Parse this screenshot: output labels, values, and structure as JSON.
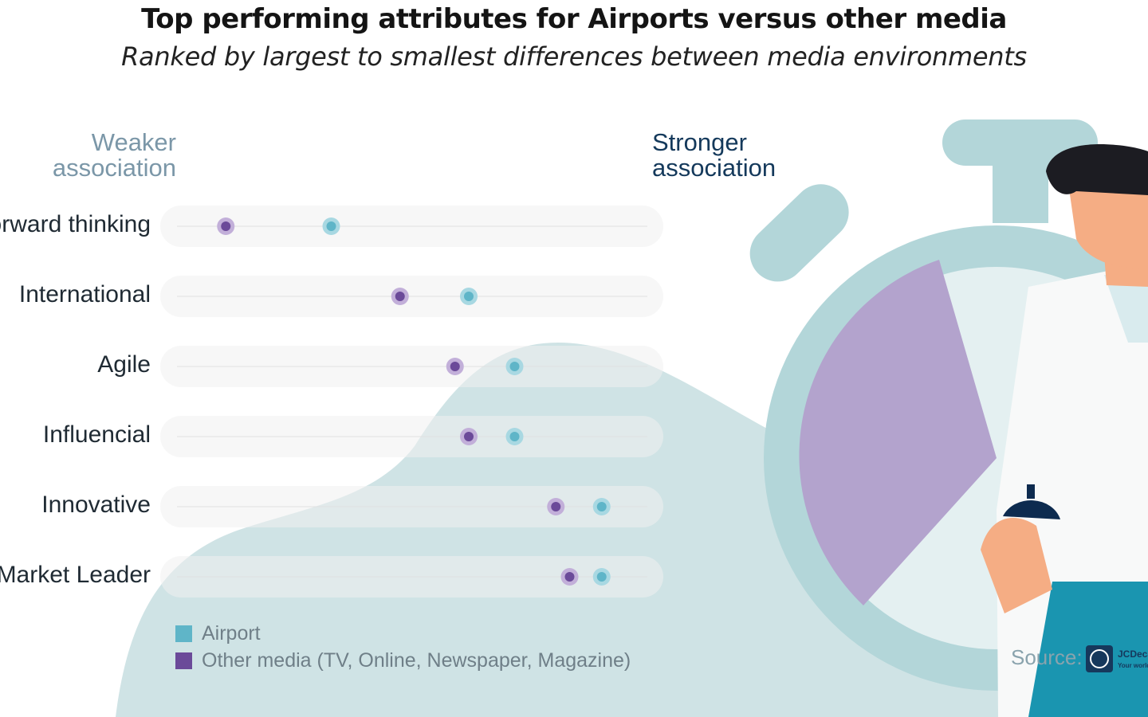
{
  "title": "Top performing attributes for Airports versus other media",
  "subtitle": "Ranked by largest to smallest differences between media environments",
  "weaker_label": [
    "Weaker",
    "association"
  ],
  "stronger_label": [
    "Stronger",
    "association"
  ],
  "source_label": "Source:",
  "brand_logo_text": "JCDecaux",
  "brand_tagline": "Your world",
  "colors": {
    "airport": "#5fb5c8",
    "airport_halo": "#a8d8e2",
    "other": "#6b4a99",
    "other_halo": "#c2afd9",
    "track": "#f1f0f0",
    "blob": "#cfe3e5",
    "stopwatch": "#b3d6d9",
    "stopwatch_face": "#e4f0f1",
    "pie": "#b3a3cd"
  },
  "legend": [
    {
      "label": "Airport",
      "color": "#5fb5c8"
    },
    {
      "label": "Other media (TV, Online, Newspaper, Magazine)",
      "color": "#6b4a99"
    }
  ],
  "chart_data": {
    "type": "scatter",
    "title": "Top performing attributes for Airports versus other media",
    "subtitle": "Ranked by largest to smallest differences between media environments",
    "xlabel": "",
    "ylabel": "",
    "scale_note": [
      "Weaker association",
      "Stronger association"
    ],
    "xlim": [
      0,
      100
    ],
    "grid": false,
    "legend_position": "bottom-left",
    "categories": [
      "Forward thinking",
      "International",
      "Agile",
      "Influencial",
      "Innovative",
      "Market Leader"
    ],
    "series": [
      {
        "name": "Other media (TV, Online, Newspaper, Magazine)",
        "values": [
          7,
          45,
          57,
          60,
          79,
          82
        ]
      },
      {
        "name": "Airport",
        "values": [
          30,
          60,
          70,
          70,
          89,
          89
        ]
      }
    ]
  }
}
